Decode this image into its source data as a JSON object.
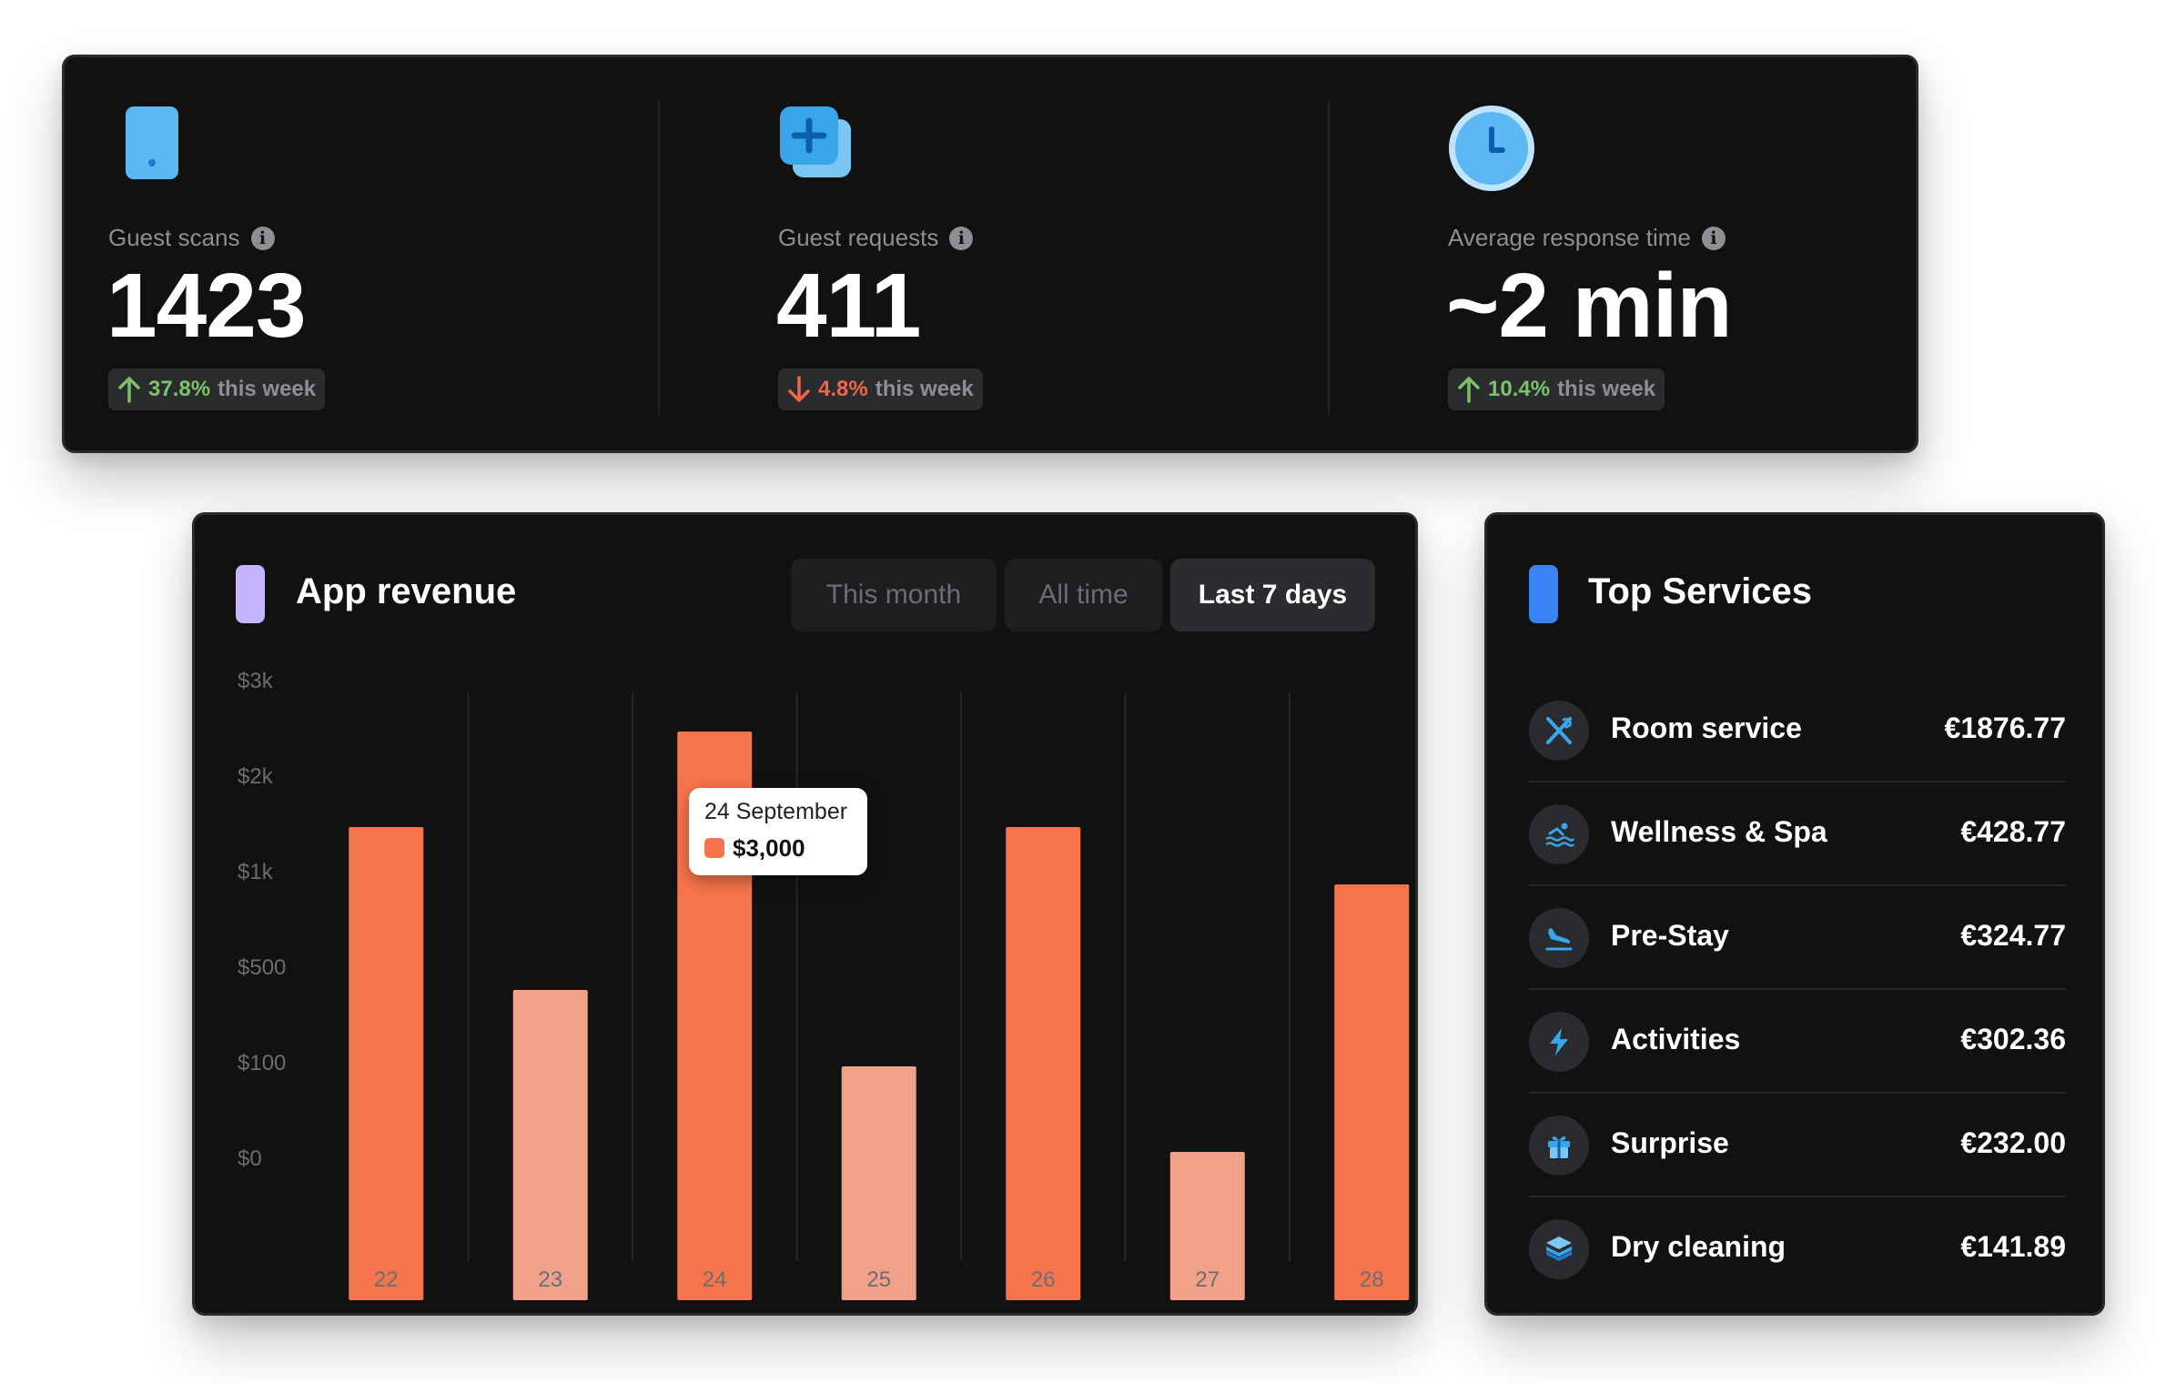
{
  "stats": [
    {
      "label": "Guest scans",
      "value": "1423",
      "trend_pct": "37.8%",
      "trend_text": "this week",
      "trend_dir": "up",
      "icon": "phone-icon"
    },
    {
      "label": "Guest requests",
      "value": "411",
      "trend_pct": "4.8%",
      "trend_text": "this week",
      "trend_dir": "down",
      "icon": "add-request-icon"
    },
    {
      "label": "Average response time",
      "value": "~2 min",
      "trend_pct": "10.4%",
      "trend_text": "this week",
      "trend_dir": "up",
      "icon": "clock-icon"
    }
  ],
  "revenue": {
    "title": "App revenue",
    "accent_color": "#c4b5fd",
    "filters": [
      {
        "label": "This month",
        "active": false
      },
      {
        "label": "All time",
        "active": false
      },
      {
        "label": "Last 7 days",
        "active": true
      }
    ],
    "tooltip": {
      "date": "24 September",
      "value": "$3,000"
    }
  },
  "chart_data": {
    "type": "bar",
    "categories": [
      "22",
      "23",
      "24",
      "25",
      "26",
      "27",
      "28"
    ],
    "values": [
      2000,
      650,
      3000,
      300,
      2000,
      60,
      1400
    ],
    "highlighted": [
      true,
      false,
      true,
      false,
      true,
      false,
      true
    ],
    "y_ticks": [
      "$3k",
      "$2k",
      "$1k",
      "$500",
      "$100",
      "$0"
    ],
    "y_tick_values": [
      3000,
      2000,
      1000,
      500,
      100,
      0
    ],
    "colors": {
      "highlight": "#f7754c",
      "muted": "#f0a189"
    },
    "grid": "vertical",
    "title": "",
    "xlabel": "",
    "ylabel": ""
  },
  "services": {
    "title": "Top Services",
    "accent_color": "#3b82f6",
    "items": [
      {
        "name": "Room service",
        "value": "€1876.77",
        "icon": "utensils-icon"
      },
      {
        "name": "Wellness & Spa",
        "value": "€428.77",
        "icon": "swimming-icon"
      },
      {
        "name": "Pre-Stay",
        "value": "€324.77",
        "icon": "plane-landing-icon"
      },
      {
        "name": "Activities",
        "value": "€302.36",
        "icon": "bolt-icon"
      },
      {
        "name": "Surprise",
        "value": "€232.00",
        "icon": "gift-icon"
      },
      {
        "name": "Dry cleaning",
        "value": "€141.89",
        "icon": "layers-icon"
      }
    ]
  }
}
